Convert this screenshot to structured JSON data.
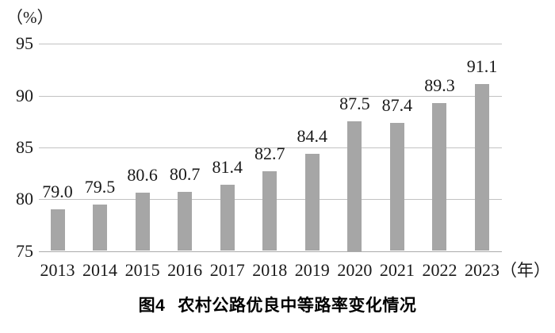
{
  "figure": {
    "y_axis_unit": "（%）",
    "x_axis_unit": "（年）",
    "caption_label": "图4",
    "caption_text": "农村公路优良中等路率变化情况"
  },
  "chart_data": {
    "type": "bar",
    "title": "图4 农村公路优良中等路率变化情况",
    "xlabel": "年",
    "ylabel": "%",
    "categories": [
      "2013",
      "2014",
      "2015",
      "2016",
      "2017",
      "2018",
      "2019",
      "2020",
      "2021",
      "2022",
      "2023"
    ],
    "values": [
      79.0,
      79.5,
      80.6,
      80.7,
      81.4,
      82.7,
      84.4,
      87.5,
      87.4,
      89.3,
      91.1
    ],
    "value_labels": [
      "79.0",
      "79.5",
      "80.6",
      "80.7",
      "81.4",
      "82.7",
      "84.4",
      "87.5",
      "87.4",
      "89.3",
      "91.1"
    ],
    "ylim": [
      75,
      95
    ],
    "yticks": [
      75,
      80,
      85,
      90,
      95
    ],
    "grid": true,
    "legend": "none",
    "bar_color": "#a6a6a6",
    "gridline_color": "#c2c2c2",
    "axis_line_color": "#ababab",
    "text_color": "#1a1a1a"
  }
}
